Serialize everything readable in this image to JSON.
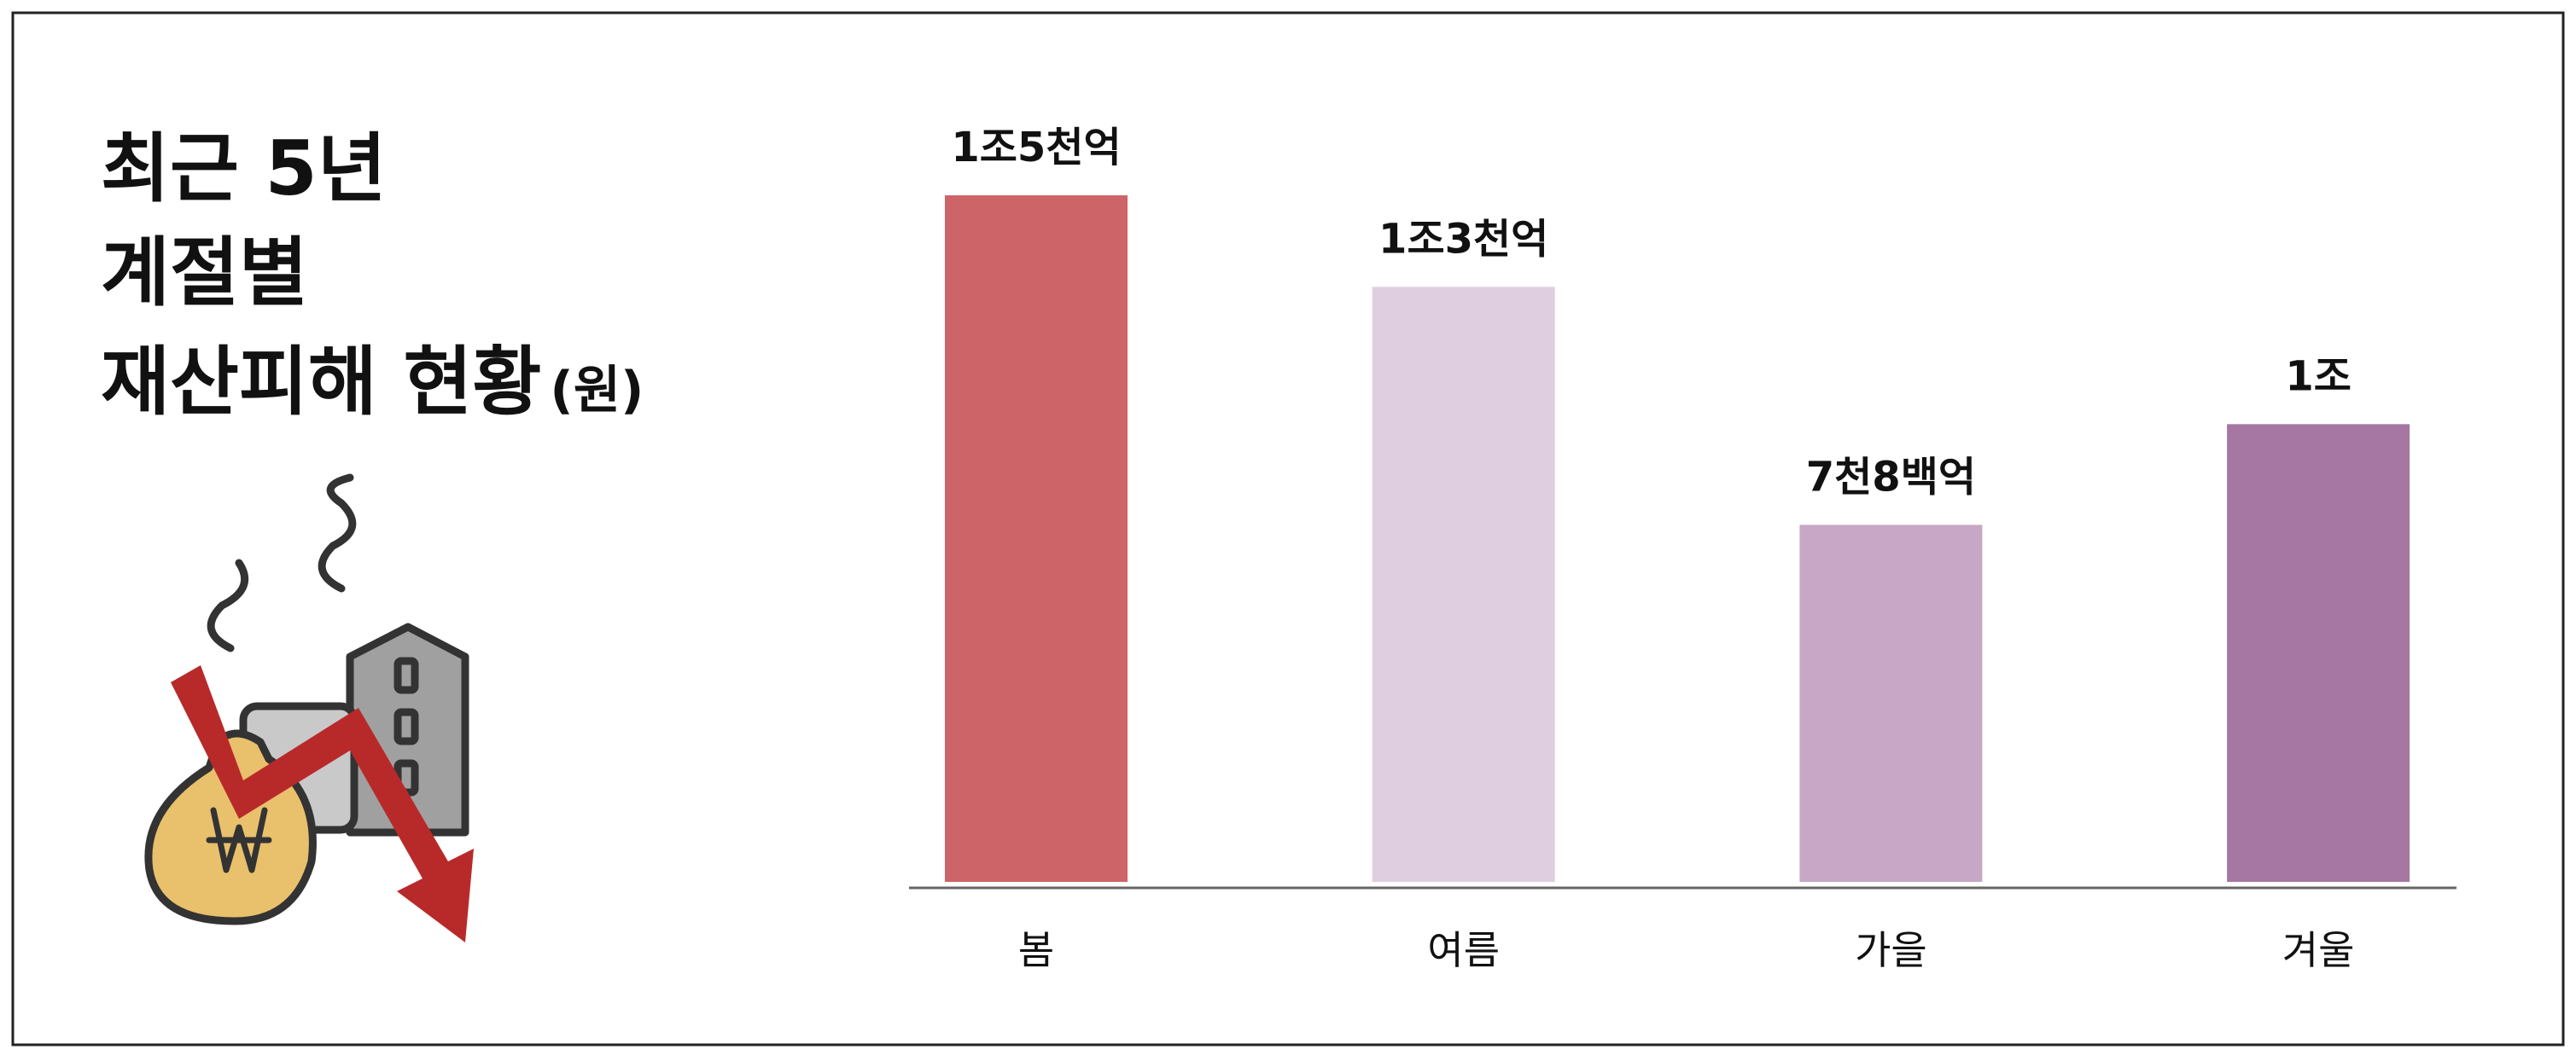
{
  "chart_data": {
    "type": "bar",
    "title_lines": [
      "최근 5년",
      "계절별",
      "재산피해 현황"
    ],
    "unit": "(원)",
    "categories": [
      "봄",
      "여름",
      "가을",
      "겨울"
    ],
    "values": [
      1500000000000,
      1300000000000,
      780000000000,
      1000000000000
    ],
    "value_labels": [
      "1조5천억",
      "1조3천억",
      "7천8백억",
      "1조"
    ],
    "colors": [
      "#cd6467",
      "#dfcde0",
      "#c7a7c5",
      "#a577a2"
    ]
  }
}
